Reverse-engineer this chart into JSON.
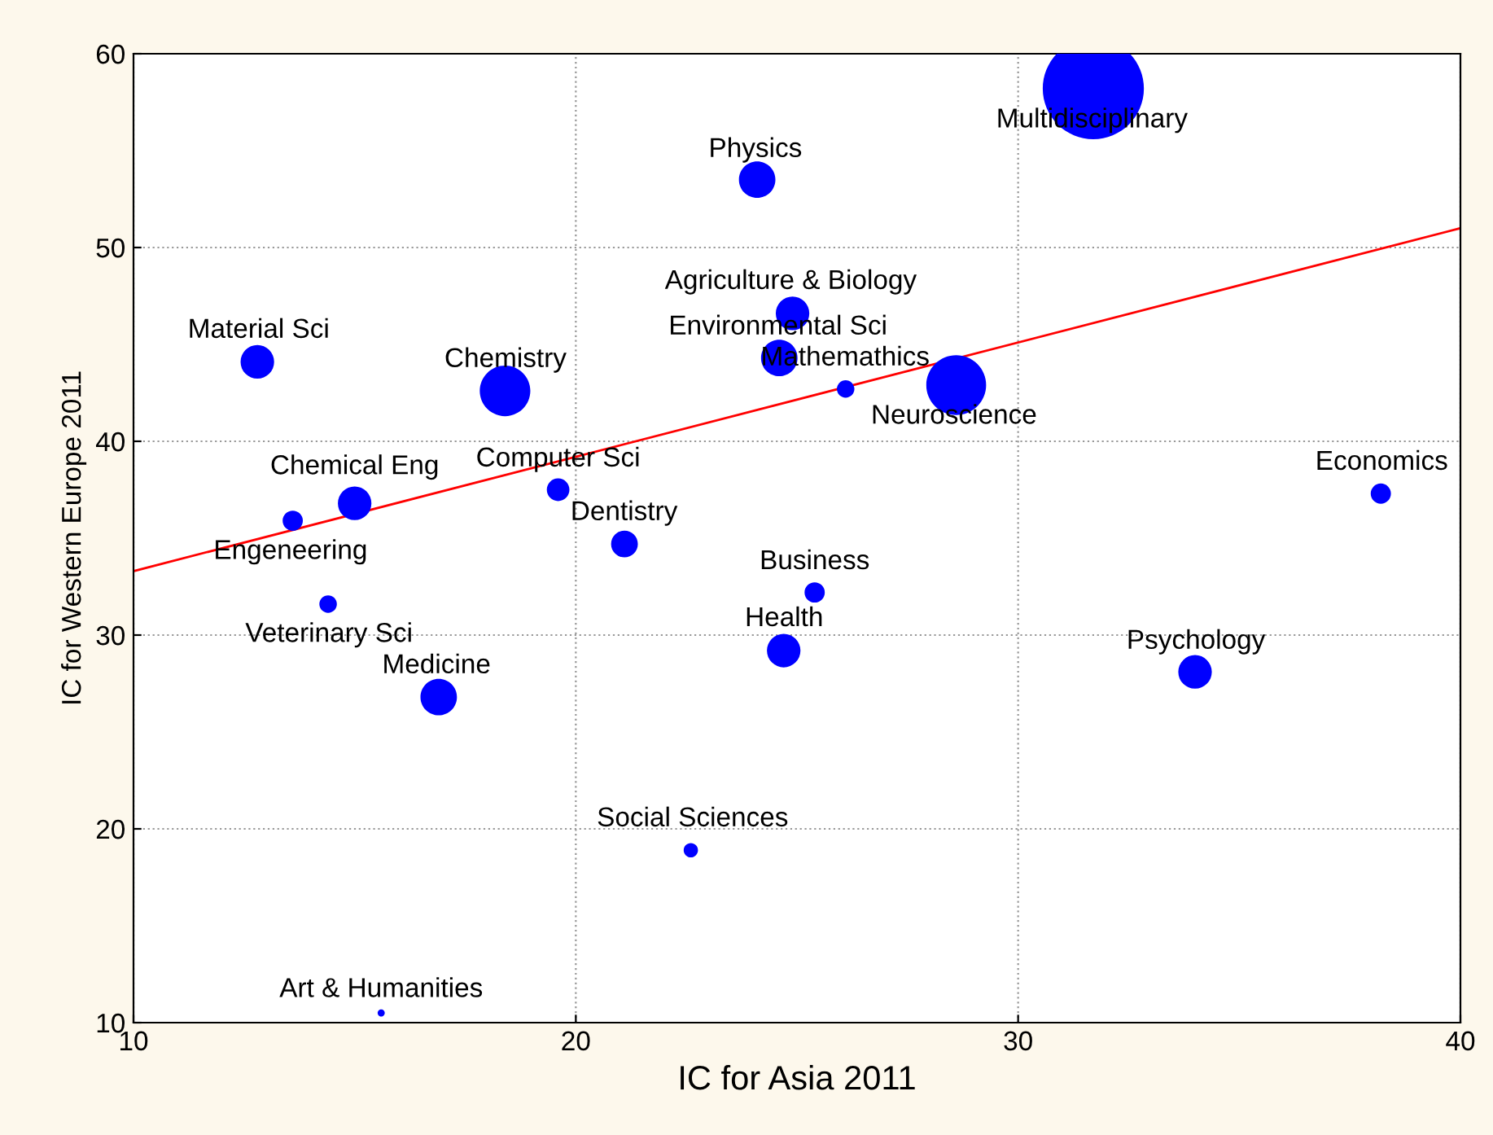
{
  "chart_data": {
    "type": "bubble",
    "xlabel": "IC for Asia 2011",
    "ylabel": "IC for Western Europe 2011",
    "xlim": [
      10,
      40
    ],
    "ylim": [
      10,
      60
    ],
    "xticks": [
      10,
      20,
      30,
      40
    ],
    "yticks": [
      10,
      20,
      30,
      40,
      50,
      60
    ],
    "grid": true,
    "legend": false,
    "series": [
      {
        "color": "#0000ff",
        "x": [
          31.7,
          24.1,
          24.9,
          24.6,
          26.1,
          28.6,
          12.8,
          18.4,
          15.0,
          13.6,
          19.6,
          21.1,
          38.2,
          25.4,
          24.7,
          14.4,
          34.0,
          16.9,
          22.6,
          15.6
        ],
        "values": [
          58.2,
          53.5,
          46.6,
          44.3,
          42.7,
          42.9,
          44.1,
          42.6,
          36.8,
          35.9,
          37.5,
          34.7,
          37.3,
          32.2,
          29.2,
          31.6,
          28.1,
          26.8,
          18.9,
          10.5
        ],
        "sizes": [
          1,
          0.13,
          0.11,
          0.13,
          0.03,
          0.35,
          0.11,
          0.25,
          0.11,
          0.04,
          0.05,
          0.07,
          0.04,
          0.04,
          0.11,
          0.03,
          0.11,
          0.13,
          0.02,
          0.005
        ]
      },
      {
        "type": "line",
        "color": "#ff0000",
        "x": [
          10,
          40
        ],
        "values": [
          33.3,
          51.0
        ]
      }
    ],
    "annotations": [
      {
        "text": "Multidisciplinary",
        "x": 31.67,
        "y": 58.15
      },
      {
        "text": "Physics",
        "x": 24.06,
        "y": 53.45
      },
      {
        "text": "Agriculture & Biology",
        "x": 24.86,
        "y": 46.64
      },
      {
        "text": "Environmental Sci",
        "x": 24.57,
        "y": 44.29
      },
      {
        "text": "Mathemathics",
        "x": 26.09,
        "y": 42.69
      },
      {
        "text": "Neuroscience",
        "x": 28.55,
        "y": 42.86
      },
      {
        "text": "Material Sci",
        "x": 12.83,
        "y": 44.12
      },
      {
        "text": "Chemistry",
        "x": 18.41,
        "y": 42.61
      },
      {
        "text": "Chemical Eng",
        "x": 15.0,
        "y": 36.8
      },
      {
        "text": "Engeneering",
        "x": 13.55,
        "y": 35.88
      },
      {
        "text": "Computer Sci",
        "x": 19.6,
        "y": 37.48
      },
      {
        "text": "Dentistry",
        "x": 21.09,
        "y": 34.71
      },
      {
        "text": "Economics",
        "x": 38.22,
        "y": 37.31
      },
      {
        "text": "Business",
        "x": 25.4,
        "y": 32.18
      },
      {
        "text": "Health",
        "x": 24.71,
        "y": 29.24
      },
      {
        "text": "Veterinary Sci",
        "x": 14.42,
        "y": 31.6
      },
      {
        "text": "Psychology",
        "x": 34.02,
        "y": 28.07
      },
      {
        "text": "Medicine",
        "x": 16.85,
        "y": 26.81
      },
      {
        "text": "Social Sciences",
        "x": 22.64,
        "y": 18.91
      },
      {
        "text": "Art & Humanities",
        "x": 15.6,
        "y": 10.5
      }
    ]
  }
}
